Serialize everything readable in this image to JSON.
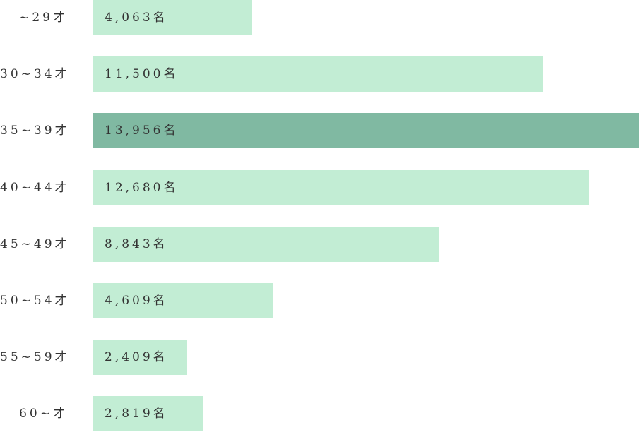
{
  "chart_data": {
    "type": "bar",
    "orientation": "horizontal",
    "categories": [
      "~29才",
      "30~34才",
      "35~39才",
      "40~44才",
      "45~49才",
      "50~54才",
      "55~59才",
      "60~才"
    ],
    "values": [
      4063,
      11500,
      13956,
      12680,
      8843,
      4609,
      2409,
      2819
    ],
    "value_labels": [
      "4,063名",
      "11,500名",
      "13,956名",
      "12,680名",
      "8,843名",
      "4,609名",
      "2,409名",
      "2,819名"
    ],
    "highlight_index": 2,
    "xlim": [
      0,
      13956
    ],
    "grid": false,
    "title": "",
    "xlabel": "",
    "ylabel": ""
  },
  "colors": {
    "bar": "#c2edd4",
    "highlight": "#80b9a2",
    "text": "#333333"
  }
}
